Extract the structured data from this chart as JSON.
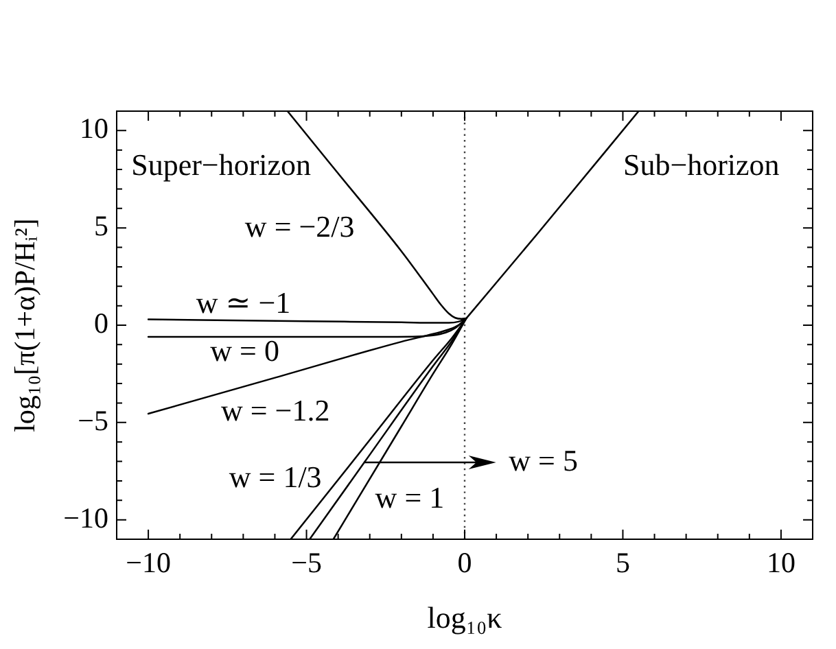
{
  "chart_data": {
    "type": "line",
    "xlabel": "log₁₀κ",
    "ylabel": "log₁₀[π(1+α)P/Hᵢ²]",
    "xlim": [
      -11,
      11
    ],
    "ylim": [
      -11,
      11
    ],
    "xticks": [
      {
        "value": -10,
        "label": "−10"
      },
      {
        "value": -9,
        "label": null
      },
      {
        "value": -8,
        "label": null
      },
      {
        "value": -7,
        "label": null
      },
      {
        "value": -6,
        "label": null
      },
      {
        "value": -5,
        "label": "−5"
      },
      {
        "value": -4,
        "label": null
      },
      {
        "value": -3,
        "label": null
      },
      {
        "value": -2,
        "label": null
      },
      {
        "value": -1,
        "label": null
      },
      0,
      {
        "value": 1,
        "label": null
      },
      {
        "value": 2,
        "label": null
      },
      {
        "value": 3,
        "label": null
      },
      {
        "value": 4,
        "label": null
      },
      5,
      {
        "value": 6,
        "label": null
      },
      {
        "value": 7,
        "label": null
      },
      {
        "value": 8,
        "label": null
      },
      {
        "value": 9,
        "label": null
      },
      10
    ],
    "yticks": [
      {
        "value": -10,
        "label": "−10"
      },
      {
        "value": -9,
        "label": null
      },
      {
        "value": -8,
        "label": null
      },
      {
        "value": -7,
        "label": null
      },
      {
        "value": -6,
        "label": null
      },
      {
        "value": -5,
        "label": "−5"
      },
      {
        "value": -4,
        "label": null
      },
      {
        "value": -3,
        "label": null
      },
      {
        "value": -2,
        "label": null
      },
      {
        "value": -1,
        "label": null
      },
      0,
      {
        "value": 1,
        "label": null
      },
      {
        "value": 2,
        "label": null
      },
      {
        "value": 3,
        "label": null
      },
      {
        "value": 4,
        "label": null
      },
      5,
      {
        "value": 6,
        "label": null
      },
      {
        "value": 7,
        "label": null
      },
      {
        "value": 8,
        "label": null
      },
      {
        "value": 9,
        "label": null
      },
      10
    ],
    "marker": "none",
    "series": [
      {
        "name": "w = −2/3",
        "color": "#000000",
        "x": [
          -5.6,
          -4,
          -2,
          -1,
          -0.75,
          -0.5,
          -0.3,
          -0.1,
          0.05
        ],
        "values": [
          11,
          7.8,
          3.8,
          1.6,
          1.05,
          0.6,
          0.38,
          0.33,
          0.35
        ]
      },
      {
        "name": "w ≃ −1",
        "color": "#000000",
        "x": [
          -10,
          -5,
          -2,
          -1,
          -0.5,
          -0.2,
          0.05
        ],
        "values": [
          0.3,
          0.2,
          0.15,
          0.12,
          0.12,
          0.18,
          0.35
        ]
      },
      {
        "name": "w = 0",
        "color": "#000000",
        "x": [
          -10,
          -3,
          -1.5,
          -1,
          -0.6,
          -0.3,
          0.05
        ],
        "values": [
          -0.6,
          -0.6,
          -0.58,
          -0.52,
          -0.38,
          -0.15,
          0.35
        ]
      },
      {
        "name": "w = −1.2",
        "color": "#000000",
        "x": [
          -10,
          -6,
          -2,
          -1,
          -0.5,
          -0.2,
          0.05
        ],
        "values": [
          -4.55,
          -2.7,
          -0.85,
          -0.45,
          -0.22,
          0,
          0.35
        ]
      },
      {
        "name": "w = 1/3",
        "color": "#000000",
        "x": [
          -5.5,
          -3,
          -1,
          -0.4,
          0.05
        ],
        "values": [
          -11,
          -5.9,
          -1.8,
          -0.65,
          0.35
        ]
      },
      {
        "name": "w = 5",
        "color": "#000000",
        "x": [
          -4.9,
          -3.15,
          -1,
          -0.4,
          0.05
        ],
        "values": [
          -11,
          -7,
          -2.1,
          -0.8,
          0.35
        ]
      },
      {
        "name": "w = 1",
        "color": "#000000",
        "x": [
          -4.15,
          -2,
          -1,
          -0.4,
          0.05
        ],
        "values": [
          -11,
          -5.2,
          -2.5,
          -0.95,
          0.35
        ]
      },
      {
        "color": "#000000",
        "x": [
          0.05,
          2.3,
          5.5
        ],
        "values": [
          0.35,
          4.7,
          11
        ]
      }
    ],
    "ref_lines": [
      {
        "axis": "x",
        "value": 0,
        "line_style": "dotted",
        "color": "#404040"
      }
    ],
    "annotations": [
      "Super−horizon",
      "Sub−horizon"
    ]
  }
}
